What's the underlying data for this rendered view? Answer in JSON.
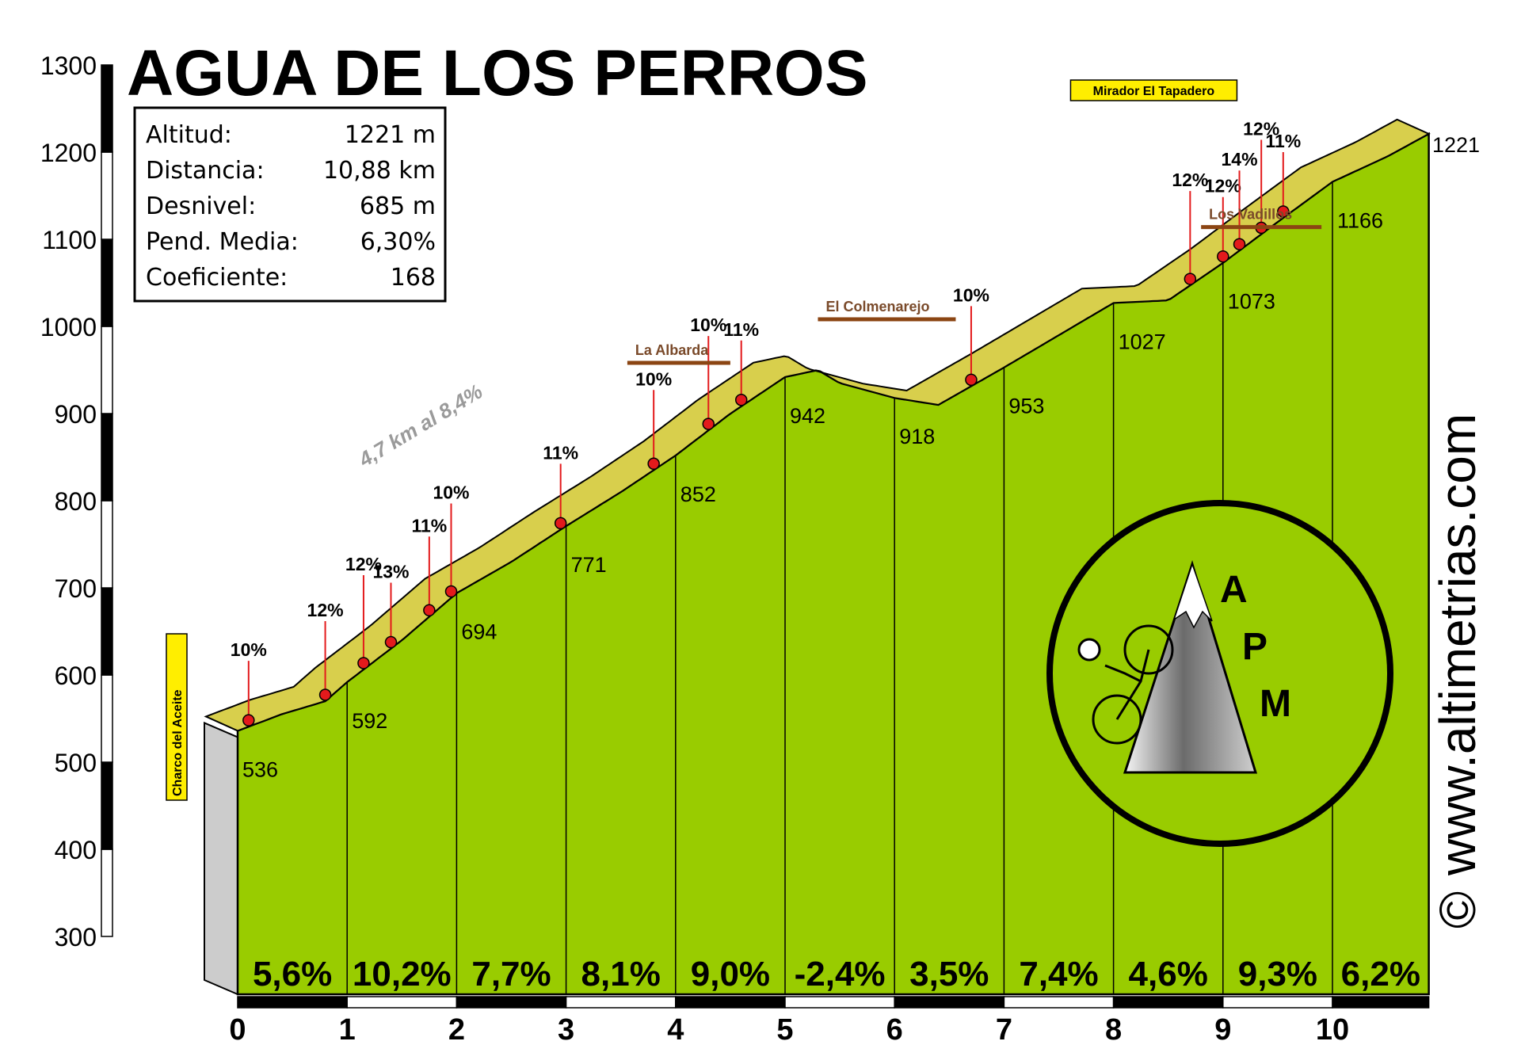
{
  "title": "AGUA DE LOS PERROS",
  "stats": [
    {
      "label": "Altitud:",
      "value": "1221 m"
    },
    {
      "label": "Distancia:",
      "value": "10,88 km"
    },
    {
      "label": "Desnivel:",
      "value": "685 m"
    },
    {
      "label": "Pend. Media:",
      "value": "6,30%"
    },
    {
      "label": "Coeficiente:",
      "value": "168"
    }
  ],
  "website": "www.altimetrias.com",
  "copyright": "©",
  "logo_letters": [
    "A",
    "P",
    "M"
  ],
  "annotation": "4,7 km al 8,4%",
  "start_label": "Charco del Aceite",
  "end_label": "1221",
  "colors": {
    "fill": "#99cc00",
    "road": "#d8cf4c",
    "steep": "#8b4513",
    "marker": "#e31a1c"
  },
  "chart_data": {
    "type": "area",
    "title": "AGUA DE LOS PERROS",
    "xlabel": "",
    "ylabel": "",
    "xlim": [
      0,
      10.88
    ],
    "ylim": [
      300,
      1300
    ],
    "xticks": [
      0,
      1,
      2,
      3,
      4,
      5,
      6,
      7,
      8,
      9,
      10
    ],
    "yticks": [
      300,
      400,
      500,
      600,
      700,
      800,
      900,
      1000,
      1100,
      1200,
      1300
    ],
    "x": [
      0,
      0.4,
      0.8,
      1.0,
      1.5,
      2.0,
      2.5,
      3.0,
      3.5,
      4.0,
      4.5,
      5.0,
      5.3,
      5.5,
      6.0,
      6.4,
      7.0,
      7.5,
      8.0,
      8.5,
      9.0,
      9.5,
      10.0,
      10.5,
      10.88
    ],
    "y": [
      536,
      555,
      570,
      592,
      640,
      694,
      730,
      771,
      810,
      852,
      900,
      942,
      950,
      935,
      918,
      910,
      953,
      990,
      1027,
      1030,
      1073,
      1120,
      1166,
      1195,
      1221
    ],
    "km_gradients": [
      "5,6%",
      "10,2%",
      "7,7%",
      "8,1%",
      "9,0%",
      "-2,4%",
      "3,5%",
      "7,4%",
      "4,6%",
      "9,3%",
      "6,2%"
    ],
    "elevation_labels": [
      {
        "km": 0,
        "value": "536"
      },
      {
        "km": 1,
        "value": "592"
      },
      {
        "km": 2,
        "value": "694"
      },
      {
        "km": 3,
        "value": "771"
      },
      {
        "km": 4,
        "value": "852"
      },
      {
        "km": 5,
        "value": "942"
      },
      {
        "km": 6,
        "value": "918"
      },
      {
        "km": 7,
        "value": "953"
      },
      {
        "km": 8,
        "value": "1027"
      },
      {
        "km": 9,
        "value": "1073"
      },
      {
        "km": 10,
        "value": "1166"
      }
    ],
    "slope_points": [
      {
        "km": 0.1,
        "label": "10%"
      },
      {
        "km": 0.8,
        "label": "12%"
      },
      {
        "km": 1.15,
        "label": "12%"
      },
      {
        "km": 1.4,
        "label": "13%"
      },
      {
        "km": 1.75,
        "label": "11%"
      },
      {
        "km": 1.95,
        "label": "10%"
      },
      {
        "km": 2.95,
        "label": "11%"
      },
      {
        "km": 3.8,
        "label": "10%"
      },
      {
        "km": 4.3,
        "label": "10%"
      },
      {
        "km": 4.6,
        "label": "11%"
      },
      {
        "km": 6.7,
        "label": "10%"
      },
      {
        "km": 8.7,
        "label": "12%"
      },
      {
        "km": 9.0,
        "label": "12%"
      },
      {
        "km": 9.15,
        "label": "14%"
      },
      {
        "km": 9.35,
        "label": "12%"
      },
      {
        "km": 9.55,
        "label": "11%"
      }
    ],
    "places": [
      {
        "km": 4.5,
        "name": "La Albarda",
        "direction": "left"
      },
      {
        "km": 5.3,
        "name": "El Colmenarejo",
        "direction": "right"
      },
      {
        "km": 8.8,
        "name": "Los Vadillos",
        "direction": "right"
      },
      {
        "km": 9.2,
        "name": "Mirador El Tapadero",
        "direction": "up"
      }
    ]
  }
}
